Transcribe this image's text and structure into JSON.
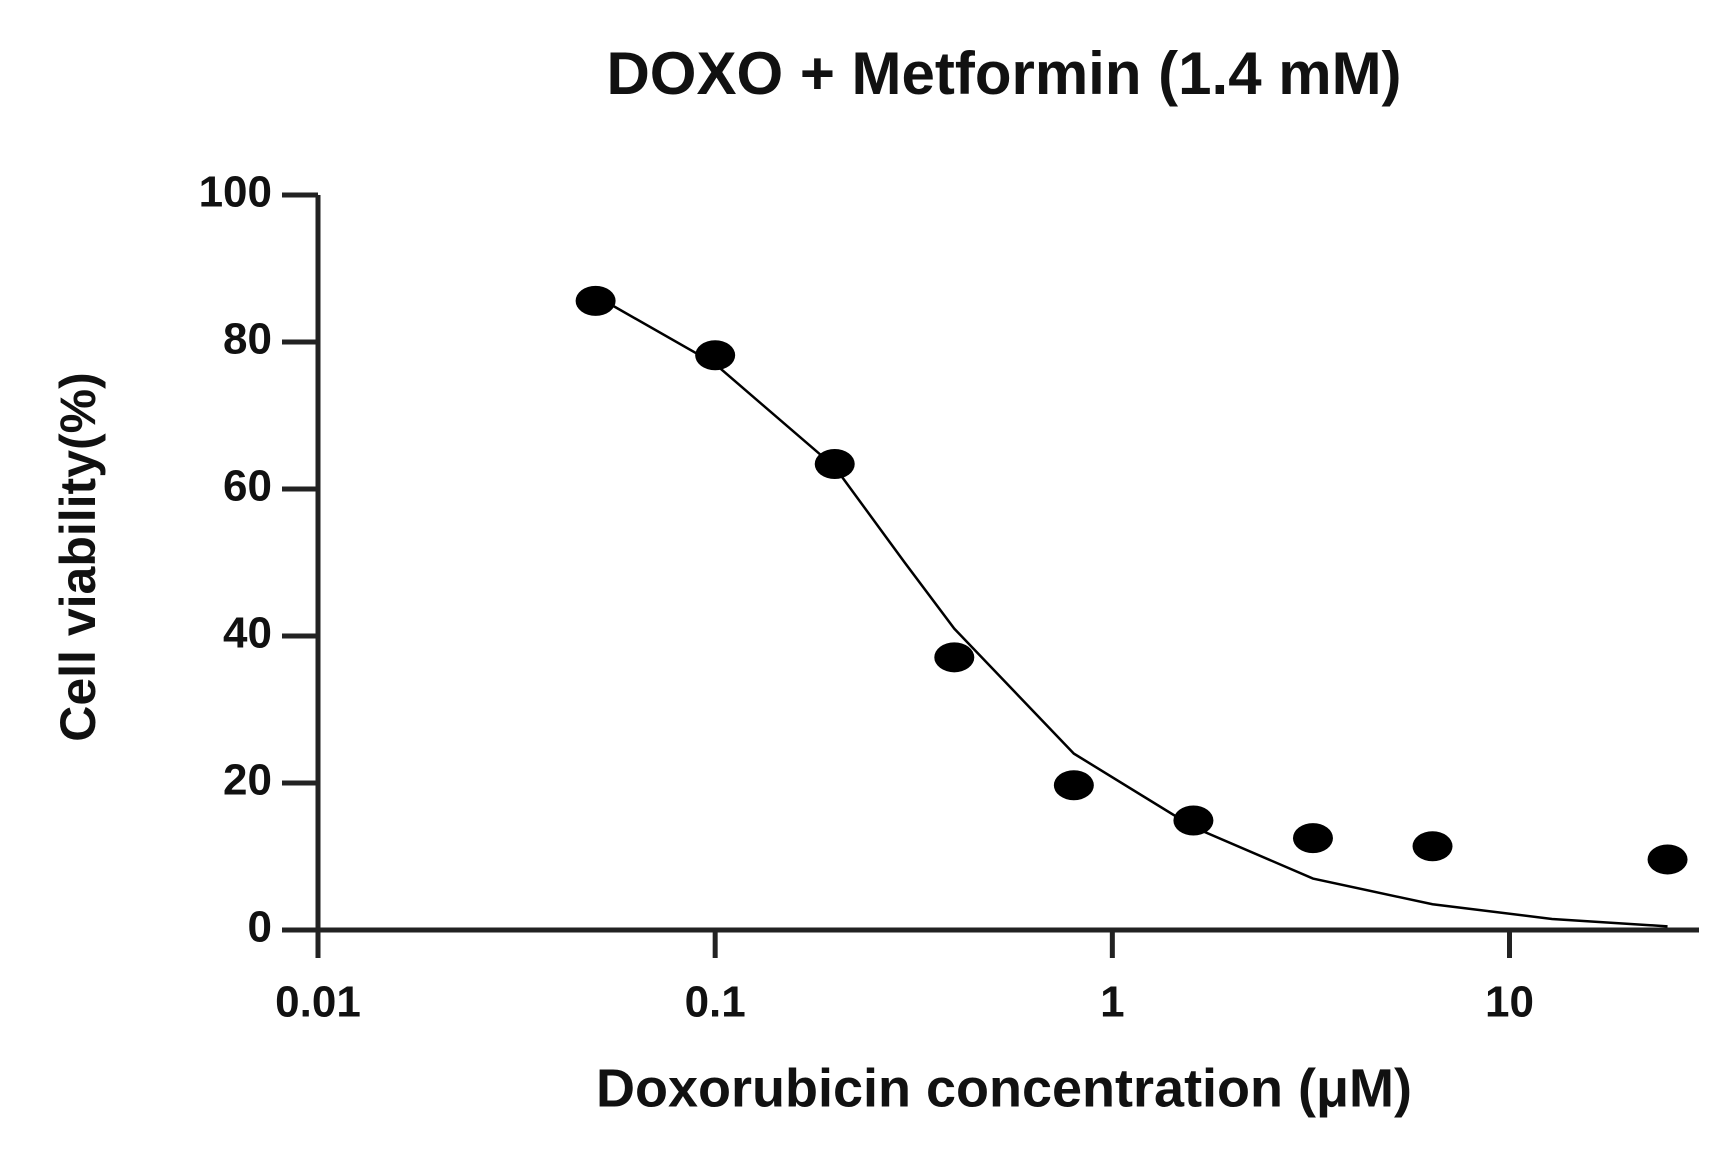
{
  "chart_data": {
    "type": "scatter",
    "title": "DOXO + Metformin (1.4 mM)",
    "x_label": "Doxorubicin concentration (μM)",
    "y_label": "Cell viability(%)",
    "x": [
      0.05,
      0.1,
      0.2,
      0.4,
      0.8,
      1.6,
      3.2,
      6.4,
      25
    ],
    "values": [
      85.6,
      78.2,
      63.4,
      37.1,
      19.7,
      14.9,
      12.5,
      11.4,
      9.6
    ],
    "color": "#000000",
    "fit": {
      "x": [
        0.055,
        0.1,
        0.2,
        0.3,
        0.4,
        0.8,
        1.6,
        3.2,
        6.4,
        12.8,
        25
      ],
      "values": [
        85,
        77,
        63,
        50,
        41,
        24,
        14,
        7,
        3.5,
        1.5,
        0.5
      ],
      "color": "#000000"
    },
    "xscale": "log",
    "xlim": [
      0.01,
      30
    ],
    "xticks": [
      0.01,
      0.1,
      1,
      10
    ],
    "ylim": [
      0,
      100
    ],
    "yticks": [
      0,
      20,
      40,
      60,
      80,
      100
    ],
    "grid": false
  }
}
